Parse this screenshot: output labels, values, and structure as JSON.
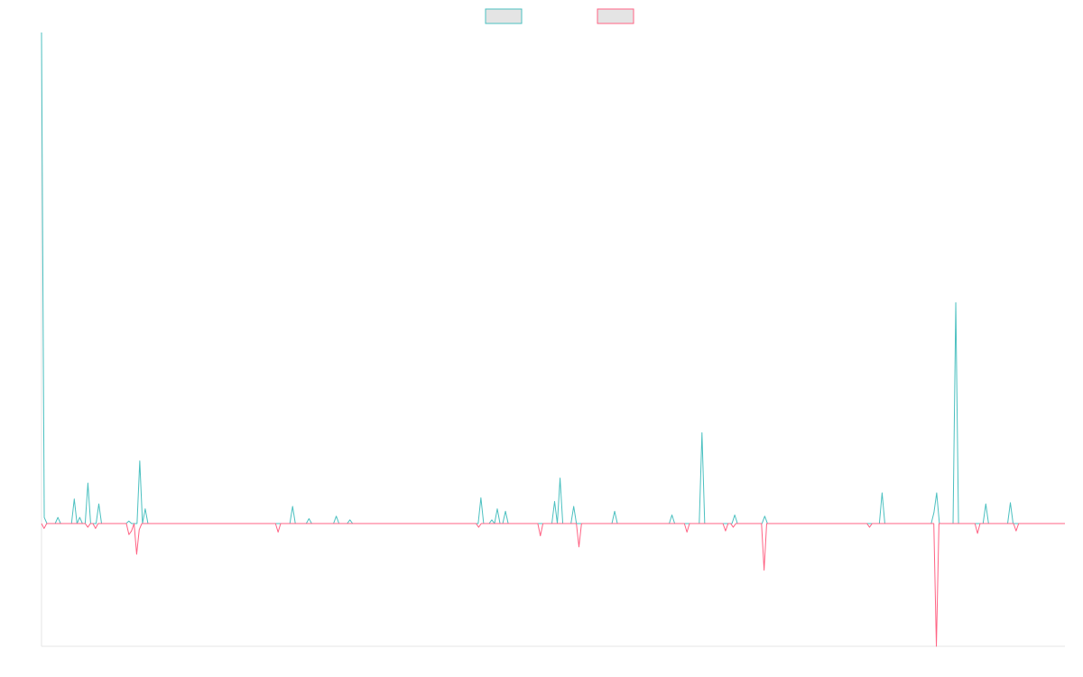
{
  "chart_data": {
    "type": "line",
    "title": "",
    "xlabel": "",
    "ylabel": "",
    "ylim": [
      -100,
      400
    ],
    "grid": false,
    "legend_position": "top-center",
    "series": [
      {
        "color": "#4bc0c0",
        "fill": "#e4e4e4",
        "values": [
          400,
          5,
          0,
          0,
          0,
          0,
          5,
          0,
          0,
          0,
          0,
          0,
          20,
          0,
          5,
          0,
          0,
          33,
          0,
          0,
          0,
          16,
          0,
          0,
          0,
          0,
          0,
          0,
          0,
          0,
          0,
          0,
          2,
          0,
          0,
          0,
          51,
          0,
          12,
          0,
          0,
          0,
          0,
          0,
          0,
          0,
          0,
          0,
          0,
          0,
          0,
          0,
          0,
          0,
          0,
          0,
          0,
          0,
          0,
          0,
          0,
          0,
          0,
          0,
          0,
          0,
          0,
          0,
          0,
          0,
          0,
          0,
          0,
          0,
          0,
          0,
          0,
          0,
          0,
          0,
          0,
          0,
          0,
          0,
          0,
          0,
          0,
          0,
          0,
          0,
          0,
          0,
          14,
          0,
          0,
          0,
          0,
          0,
          4,
          0,
          0,
          0,
          0,
          0,
          0,
          0,
          0,
          0,
          6,
          0,
          0,
          0,
          0,
          3,
          0,
          0,
          0,
          0,
          0,
          0,
          0,
          0,
          0,
          0,
          0,
          0,
          0,
          0,
          0,
          0,
          0,
          0,
          0,
          0,
          0,
          0,
          0,
          0,
          0,
          0,
          0,
          0,
          0,
          0,
          0,
          0,
          0,
          0,
          0,
          0,
          0,
          0,
          0,
          0,
          0,
          0,
          0,
          0,
          0,
          0,
          0,
          21,
          0,
          0,
          0,
          3,
          0,
          12,
          0,
          0,
          10,
          0,
          0,
          0,
          0,
          0,
          0,
          0,
          0,
          0,
          0,
          0,
          0,
          0,
          0,
          0,
          0,
          0,
          18,
          0,
          37,
          0,
          0,
          0,
          0,
          14,
          0,
          0,
          0,
          0,
          0,
          0,
          0,
          0,
          0,
          0,
          0,
          0,
          0,
          0,
          10,
          0,
          0,
          0,
          0,
          0,
          0,
          0,
          0,
          0,
          0,
          0,
          0,
          0,
          0,
          0,
          0,
          0,
          0,
          0,
          0,
          7,
          0,
          0,
          0,
          0,
          0,
          0,
          0,
          0,
          0,
          0,
          74,
          0,
          0,
          0,
          0,
          0,
          0,
          0,
          0,
          0,
          0,
          0,
          7,
          0,
          0,
          0,
          0,
          0,
          0,
          0,
          0,
          0,
          0,
          6,
          0,
          0,
          0,
          0,
          0,
          0,
          0,
          0,
          0,
          0,
          0,
          0,
          0,
          0,
          0,
          0,
          0,
          0,
          0,
          0,
          0,
          0,
          0,
          0,
          0,
          0,
          0,
          0,
          0,
          0,
          0,
          0,
          0,
          0,
          0,
          0,
          0,
          0,
          0,
          0,
          0,
          0,
          25,
          0,
          0,
          0,
          0,
          0,
          0,
          0,
          0,
          0,
          0,
          0,
          0,
          0,
          0,
          0,
          0,
          0,
          0,
          9,
          25,
          0,
          0,
          0,
          0,
          0,
          0,
          180,
          0,
          0,
          0,
          0,
          0,
          0,
          0,
          0,
          0,
          0,
          16,
          0,
          0,
          0,
          0,
          0,
          0,
          0,
          0,
          17,
          0,
          0,
          0,
          0,
          0,
          0,
          0,
          0,
          0,
          0,
          0,
          0,
          0,
          0,
          0,
          0,
          0,
          0,
          0,
          0
        ]
      },
      {
        "color": "#ff6384",
        "fill": "#e4e4e4",
        "values": [
          0,
          -4,
          0,
          0,
          0,
          0,
          0,
          0,
          0,
          0,
          0,
          0,
          0,
          0,
          0,
          0,
          0,
          0,
          -3,
          0,
          0,
          -4,
          0,
          0,
          0,
          0,
          0,
          0,
          0,
          0,
          0,
          0,
          0,
          0,
          -9,
          -6,
          0,
          -25,
          -5,
          0,
          0,
          0,
          0,
          0,
          0,
          0,
          0,
          0,
          0,
          0,
          0,
          0,
          0,
          0,
          0,
          0,
          0,
          0,
          0,
          0,
          0,
          0,
          0,
          0,
          0,
          0,
          0,
          0,
          0,
          0,
          0,
          0,
          0,
          0,
          0,
          0,
          0,
          0,
          0,
          0,
          0,
          0,
          0,
          0,
          0,
          0,
          0,
          0,
          0,
          0,
          0,
          0,
          -7,
          0,
          0,
          0,
          0,
          0,
          0,
          0,
          0,
          0,
          0,
          0,
          0,
          0,
          0,
          0,
          0,
          0,
          0,
          0,
          0,
          0,
          0,
          0,
          0,
          0,
          0,
          0,
          0,
          0,
          0,
          0,
          0,
          0,
          0,
          0,
          0,
          0,
          0,
          0,
          0,
          0,
          0,
          0,
          0,
          0,
          0,
          0,
          0,
          0,
          0,
          0,
          0,
          0,
          0,
          0,
          0,
          0,
          0,
          0,
          0,
          0,
          0,
          0,
          0,
          0,
          0,
          0,
          0,
          0,
          0,
          0,
          0,
          0,
          0,
          0,
          0,
          0,
          -3,
          0,
          0,
          0,
          0,
          0,
          0,
          0,
          0,
          0,
          0,
          0,
          0,
          0,
          0,
          0,
          0,
          0,
          0,
          0,
          0,
          0,
          0,
          0,
          -10,
          0,
          0,
          0,
          0,
          0,
          0,
          0,
          0,
          0,
          0,
          0,
          0,
          0,
          0,
          -19,
          0,
          0,
          0,
          0,
          0,
          0,
          0,
          0,
          0,
          0,
          0,
          0,
          0,
          0,
          0,
          0,
          0,
          0,
          0,
          0,
          0,
          0,
          0,
          0,
          0,
          0,
          0,
          0,
          0,
          0,
          0,
          0,
          0,
          0,
          0,
          0,
          0,
          0,
          0,
          0,
          0,
          -7,
          0,
          0,
          0,
          0,
          0,
          0,
          0,
          0,
          0,
          0,
          0,
          0,
          0,
          0,
          -6,
          0,
          0,
          -3,
          0,
          0,
          0,
          0,
          0,
          0,
          0,
          0,
          0,
          0,
          0,
          -38,
          0,
          0,
          0,
          0,
          0,
          0,
          0,
          0,
          0,
          0,
          0,
          0,
          0,
          0,
          0,
          0,
          0,
          0,
          0,
          0,
          0,
          0,
          0,
          0,
          0,
          0,
          0,
          0,
          0,
          0,
          0,
          0,
          0,
          0,
          0,
          0,
          0,
          0,
          0,
          0,
          -3,
          0,
          0,
          0,
          0,
          0,
          0,
          0,
          0,
          0,
          0,
          0,
          0,
          0,
          0,
          0,
          0,
          0,
          0,
          0,
          0,
          0,
          0,
          0,
          0,
          0,
          -100,
          0,
          0,
          0,
          0,
          0,
          0,
          0,
          0,
          0,
          0,
          0,
          0,
          0,
          0,
          0,
          -8,
          0,
          0,
          0,
          0,
          0,
          0,
          0,
          0,
          0,
          0,
          0,
          0,
          0,
          0,
          -6,
          0,
          0,
          0,
          0,
          0,
          0,
          0,
          0,
          0,
          0,
          0,
          0,
          0,
          0,
          0,
          0,
          0,
          0,
          0
        ]
      }
    ]
  }
}
